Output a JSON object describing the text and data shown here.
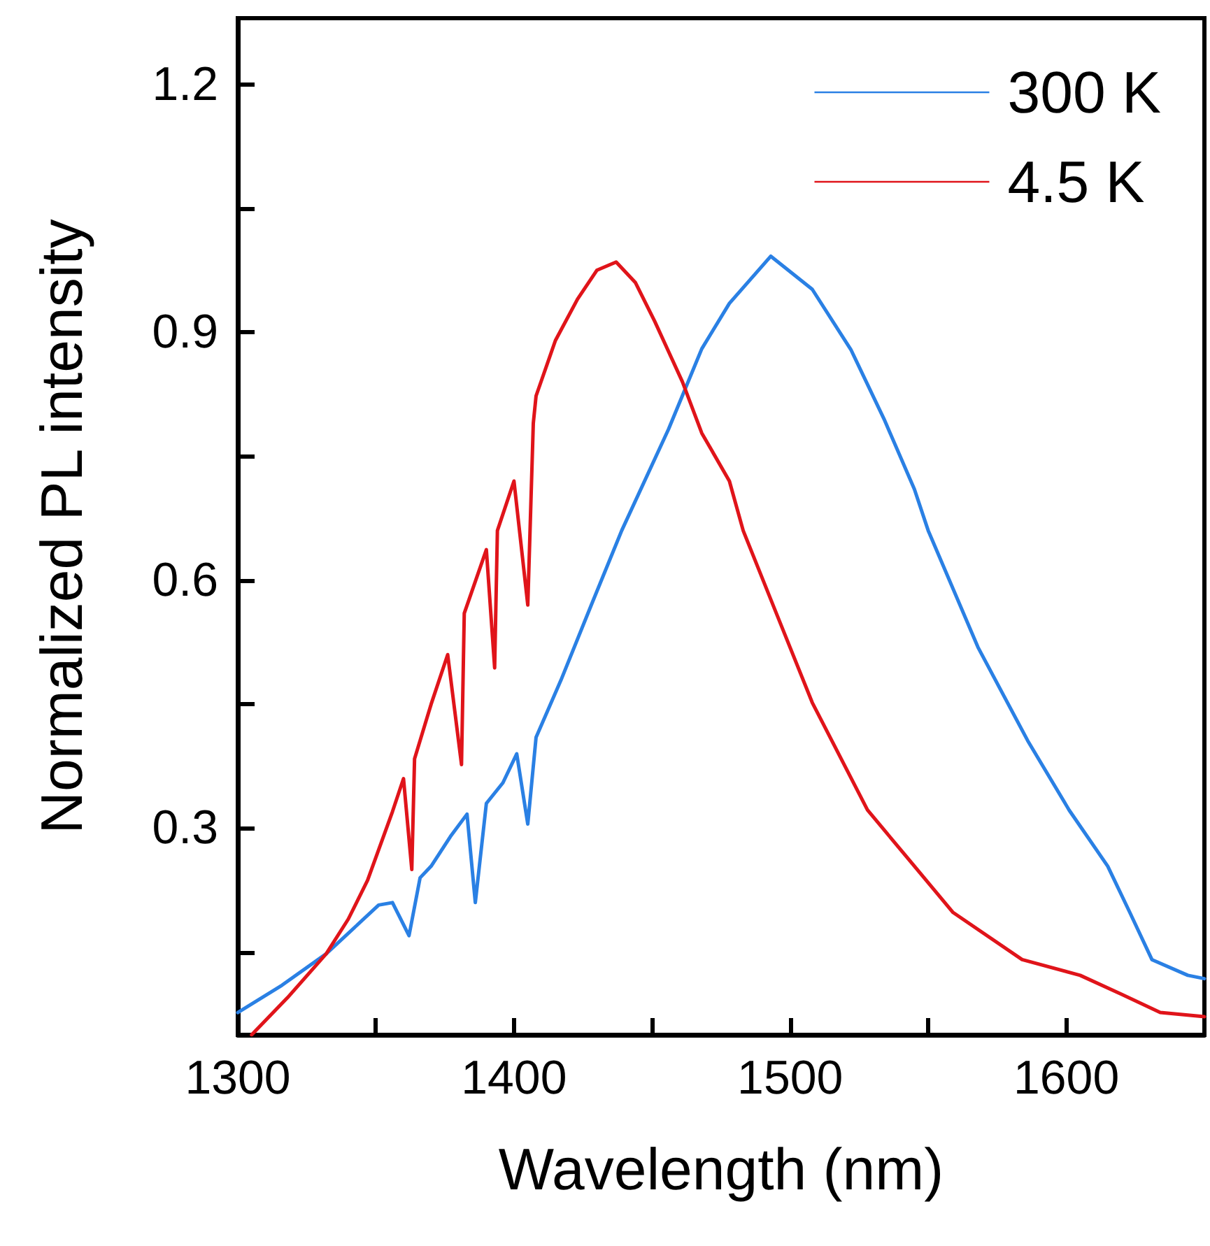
{
  "chart_data": {
    "type": "line",
    "xlabel": "Wavelength (nm)",
    "ylabel": "Normalized PL intensity",
    "xlim": [
      1300,
      1650
    ],
    "xticks": [
      1300,
      {
        "value": 1350,
        "label": null
      },
      1400,
      {
        "value": 1450,
        "label": null
      },
      1500,
      {
        "value": 1550,
        "label": null
      },
      1600
    ],
    "ylim": [
      0.05,
      1.28
    ],
    "yticks": [
      {
        "value": 0.15,
        "label": null
      },
      0.3,
      {
        "value": 0.45,
        "label": null
      },
      0.6,
      {
        "value": 0.75,
        "label": null
      },
      0.9,
      {
        "value": 1.05,
        "label": null
      },
      1.2
    ],
    "legend": "top right",
    "line_style": "solid",
    "series": [
      {
        "name": "300 K",
        "color": "#2a80e4",
        "x": [
          1300,
          1316,
          1332,
          1351,
          1356,
          1362,
          1366,
          1370,
          1377,
          1383,
          1386,
          1390,
          1396,
          1401,
          1405,
          1408,
          1417,
          1428,
          1439,
          1456,
          1468,
          1478,
          1493,
          1508,
          1522,
          1534,
          1545,
          1550,
          1568,
          1586,
          1601,
          1615,
          1623,
          1631,
          1644,
          1650
        ],
        "values": [
          0.077,
          0.11,
          0.148,
          0.207,
          0.21,
          0.17,
          0.24,
          0.254,
          0.29,
          0.317,
          0.21,
          0.33,
          0.355,
          0.39,
          0.305,
          0.41,
          0.479,
          0.57,
          0.66,
          0.783,
          0.88,
          0.935,
          0.992,
          0.952,
          0.879,
          0.795,
          0.71,
          0.66,
          0.519,
          0.406,
          0.322,
          0.254,
          0.198,
          0.141,
          0.122,
          0.118
        ]
      },
      {
        "name": "4.5 K",
        "color": "#e0141a",
        "x": [
          1305,
          1318,
          1332,
          1340,
          1347,
          1356,
          1360,
          1363,
          1364,
          1370,
          1376,
          1381,
          1382,
          1390,
          1393,
          1394,
          1400,
          1405,
          1407,
          1408,
          1415,
          1423,
          1430,
          1437,
          1444,
          1451,
          1461,
          1468,
          1478,
          1483,
          1495,
          1508,
          1528,
          1542,
          1559,
          1584,
          1605,
          1620,
          1634,
          1650
        ],
        "values": [
          0.05,
          0.095,
          0.148,
          0.19,
          0.237,
          0.32,
          0.36,
          0.25,
          0.384,
          0.45,
          0.51,
          0.377,
          0.56,
          0.637,
          0.494,
          0.66,
          0.72,
          0.57,
          0.79,
          0.823,
          0.89,
          0.94,
          0.975,
          0.985,
          0.96,
          0.913,
          0.84,
          0.778,
          0.72,
          0.66,
          0.56,
          0.452,
          0.322,
          0.266,
          0.198,
          0.141,
          0.122,
          0.099,
          0.077,
          0.072
        ]
      }
    ]
  }
}
